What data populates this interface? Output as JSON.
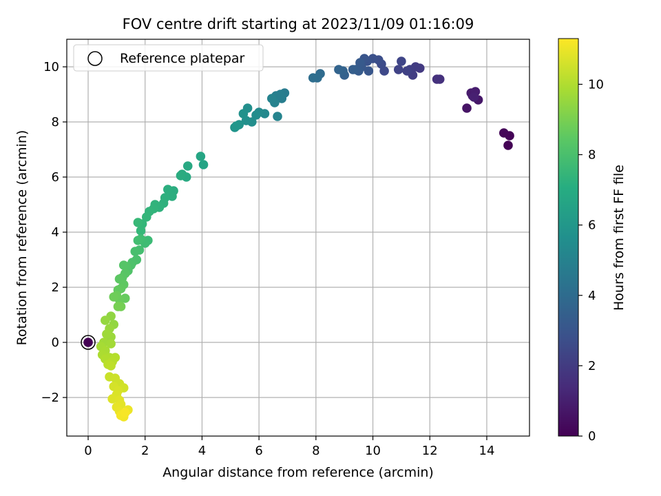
{
  "chart_data": {
    "type": "scatter",
    "title": "FOV centre drift starting at 2023/11/09 01:16:09",
    "xlabel": "Angular distance from reference (arcmin)",
    "ylabel": "Rotation from reference (arcmin)",
    "xlim": [
      -0.75,
      15.5
    ],
    "ylim": [
      -3.4,
      11.0
    ],
    "xticks": [
      0,
      2,
      4,
      6,
      8,
      10,
      12,
      14
    ],
    "yticks": [
      -2,
      0,
      2,
      4,
      6,
      8,
      10
    ],
    "grid": true,
    "legend": {
      "placement": "upper-left",
      "entries": [
        "Reference platepar"
      ]
    },
    "reference_point": {
      "x": 0,
      "y": 0,
      "label": "Reference platepar"
    },
    "colorbar": {
      "label": "Hours from first FF file",
      "range": [
        0,
        11.3
      ],
      "ticks": [
        0,
        2,
        4,
        6,
        8,
        10
      ],
      "colormap": "viridis"
    },
    "points": [
      {
        "x": 14.75,
        "y": 7.15,
        "c": 0.05
      },
      {
        "x": 14.8,
        "y": 7.5,
        "c": 0.1
      },
      {
        "x": 14.6,
        "y": 7.6,
        "c": 0.15
      },
      {
        "x": 13.3,
        "y": 8.5,
        "c": 0.6
      },
      {
        "x": 13.7,
        "y": 8.8,
        "c": 0.7
      },
      {
        "x": 13.5,
        "y": 8.95,
        "c": 0.8
      },
      {
        "x": 13.45,
        "y": 9.05,
        "c": 0.85
      },
      {
        "x": 13.6,
        "y": 9.1,
        "c": 0.9
      },
      {
        "x": 13.55,
        "y": 8.9,
        "c": 1.0
      },
      {
        "x": 12.35,
        "y": 9.55,
        "c": 1.6
      },
      {
        "x": 12.25,
        "y": 9.55,
        "c": 1.65
      },
      {
        "x": 11.65,
        "y": 9.95,
        "c": 1.9
      },
      {
        "x": 11.5,
        "y": 10.0,
        "c": 2.0
      },
      {
        "x": 11.4,
        "y": 9.7,
        "c": 2.05
      },
      {
        "x": 11.3,
        "y": 9.9,
        "c": 2.1
      },
      {
        "x": 11.2,
        "y": 9.85,
        "c": 2.2
      },
      {
        "x": 10.9,
        "y": 9.9,
        "c": 2.3
      },
      {
        "x": 11.0,
        "y": 10.2,
        "c": 2.35
      },
      {
        "x": 10.4,
        "y": 9.85,
        "c": 2.5
      },
      {
        "x": 10.3,
        "y": 10.1,
        "c": 2.6
      },
      {
        "x": 10.2,
        "y": 10.25,
        "c": 2.7
      },
      {
        "x": 10.0,
        "y": 10.3,
        "c": 2.8
      },
      {
        "x": 9.8,
        "y": 10.2,
        "c": 2.9
      },
      {
        "x": 9.7,
        "y": 10.3,
        "c": 3.0
      },
      {
        "x": 9.85,
        "y": 9.85,
        "c": 3.05
      },
      {
        "x": 9.6,
        "y": 10.0,
        "c": 3.1
      },
      {
        "x": 9.55,
        "y": 10.15,
        "c": 3.2
      },
      {
        "x": 9.5,
        "y": 9.85,
        "c": 3.25
      },
      {
        "x": 9.4,
        "y": 9.9,
        "c": 3.3
      },
      {
        "x": 9.3,
        "y": 9.9,
        "c": 3.35
      },
      {
        "x": 9.0,
        "y": 9.7,
        "c": 3.5
      },
      {
        "x": 8.95,
        "y": 9.85,
        "c": 3.55
      },
      {
        "x": 8.8,
        "y": 9.9,
        "c": 3.6
      },
      {
        "x": 8.15,
        "y": 9.75,
        "c": 3.9
      },
      {
        "x": 8.05,
        "y": 9.6,
        "c": 4.0
      },
      {
        "x": 7.9,
        "y": 9.6,
        "c": 4.05
      },
      {
        "x": 6.9,
        "y": 9.05,
        "c": 4.7
      },
      {
        "x": 6.8,
        "y": 8.85,
        "c": 4.8
      },
      {
        "x": 6.75,
        "y": 9.0,
        "c": 4.85
      },
      {
        "x": 6.6,
        "y": 8.95,
        "c": 4.9
      },
      {
        "x": 6.55,
        "y": 8.7,
        "c": 5.0
      },
      {
        "x": 6.45,
        "y": 8.85,
        "c": 5.05
      },
      {
        "x": 6.65,
        "y": 8.2,
        "c": 5.1
      },
      {
        "x": 6.2,
        "y": 8.3,
        "c": 5.3
      },
      {
        "x": 6.0,
        "y": 8.35,
        "c": 5.4
      },
      {
        "x": 5.9,
        "y": 8.25,
        "c": 5.5
      },
      {
        "x": 5.75,
        "y": 8.0,
        "c": 5.55
      },
      {
        "x": 5.6,
        "y": 8.5,
        "c": 5.6
      },
      {
        "x": 5.55,
        "y": 8.05,
        "c": 5.65
      },
      {
        "x": 5.45,
        "y": 8.3,
        "c": 5.7
      },
      {
        "x": 5.3,
        "y": 7.9,
        "c": 5.8
      },
      {
        "x": 5.15,
        "y": 7.8,
        "c": 5.85
      },
      {
        "x": 5.2,
        "y": 7.85,
        "c": 5.9
      },
      {
        "x": 4.05,
        "y": 6.45,
        "c": 6.6
      },
      {
        "x": 3.95,
        "y": 6.75,
        "c": 6.65
      },
      {
        "x": 3.5,
        "y": 6.4,
        "c": 6.8
      },
      {
        "x": 3.45,
        "y": 6.0,
        "c": 6.85
      },
      {
        "x": 3.3,
        "y": 6.1,
        "c": 6.9
      },
      {
        "x": 3.25,
        "y": 6.05,
        "c": 6.95
      },
      {
        "x": 3.0,
        "y": 5.5,
        "c": 7.0
      },
      {
        "x": 2.95,
        "y": 5.3,
        "c": 7.05
      },
      {
        "x": 2.8,
        "y": 5.55,
        "c": 7.1
      },
      {
        "x": 2.7,
        "y": 5.25,
        "c": 7.15
      },
      {
        "x": 2.65,
        "y": 5.05,
        "c": 7.2
      },
      {
        "x": 2.5,
        "y": 4.9,
        "c": 7.25
      },
      {
        "x": 2.35,
        "y": 5.0,
        "c": 7.3
      },
      {
        "x": 2.3,
        "y": 4.85,
        "c": 7.35
      },
      {
        "x": 2.15,
        "y": 4.75,
        "c": 7.4
      },
      {
        "x": 2.05,
        "y": 4.55,
        "c": 7.45
      },
      {
        "x": 1.9,
        "y": 4.3,
        "c": 7.5
      },
      {
        "x": 1.85,
        "y": 4.05,
        "c": 7.55
      },
      {
        "x": 1.75,
        "y": 4.35,
        "c": 7.6
      },
      {
        "x": 2.1,
        "y": 3.7,
        "c": 7.7
      },
      {
        "x": 2.0,
        "y": 3.6,
        "c": 7.75
      },
      {
        "x": 1.85,
        "y": 3.75,
        "c": 7.8
      },
      {
        "x": 1.75,
        "y": 3.7,
        "c": 7.85
      },
      {
        "x": 1.8,
        "y": 3.35,
        "c": 7.9
      },
      {
        "x": 1.65,
        "y": 3.3,
        "c": 7.95
      },
      {
        "x": 1.7,
        "y": 3.0,
        "c": 8.0
      },
      {
        "x": 1.55,
        "y": 2.9,
        "c": 8.05
      },
      {
        "x": 1.5,
        "y": 2.8,
        "c": 8.1
      },
      {
        "x": 1.4,
        "y": 2.6,
        "c": 8.15
      },
      {
        "x": 1.35,
        "y": 2.75,
        "c": 8.2
      },
      {
        "x": 1.25,
        "y": 2.8,
        "c": 8.25
      },
      {
        "x": 1.3,
        "y": 2.5,
        "c": 8.3
      },
      {
        "x": 1.2,
        "y": 2.35,
        "c": 8.35
      },
      {
        "x": 1.1,
        "y": 2.3,
        "c": 8.4
      },
      {
        "x": 1.25,
        "y": 2.1,
        "c": 8.45
      },
      {
        "x": 1.15,
        "y": 1.95,
        "c": 8.5
      },
      {
        "x": 1.05,
        "y": 1.9,
        "c": 8.55
      },
      {
        "x": 1.3,
        "y": 1.6,
        "c": 8.6
      },
      {
        "x": 1.1,
        "y": 1.55,
        "c": 8.7
      },
      {
        "x": 1.0,
        "y": 1.7,
        "c": 8.75
      },
      {
        "x": 0.9,
        "y": 1.65,
        "c": 8.8
      },
      {
        "x": 1.15,
        "y": 1.3,
        "c": 8.9
      },
      {
        "x": 1.05,
        "y": 1.3,
        "c": 8.95
      },
      {
        "x": 0.8,
        "y": 0.95,
        "c": 9.4
      },
      {
        "x": 0.9,
        "y": 0.65,
        "c": 9.45
      },
      {
        "x": 0.6,
        "y": 0.8,
        "c": 9.5
      },
      {
        "x": 0.75,
        "y": 0.5,
        "c": 9.55
      },
      {
        "x": 0.8,
        "y": 0.2,
        "c": 9.6
      },
      {
        "x": 0.65,
        "y": 0.3,
        "c": 9.65
      },
      {
        "x": 0.55,
        "y": 0.0,
        "c": 9.7
      },
      {
        "x": 0.8,
        "y": -0.05,
        "c": 9.75
      },
      {
        "x": 0.45,
        "y": -0.15,
        "c": 9.8
      },
      {
        "x": 0.6,
        "y": -0.3,
        "c": 9.85
      },
      {
        "x": 0.5,
        "y": -0.45,
        "c": 9.9
      },
      {
        "x": 0.75,
        "y": -0.55,
        "c": 9.95
      },
      {
        "x": 0.6,
        "y": -0.6,
        "c": 10.0
      },
      {
        "x": 0.95,
        "y": -0.55,
        "c": 10.05
      },
      {
        "x": 0.85,
        "y": -0.7,
        "c": 10.1
      },
      {
        "x": 0.7,
        "y": -0.8,
        "c": 10.15
      },
      {
        "x": 0.8,
        "y": -0.85,
        "c": 10.2
      },
      {
        "x": 0.75,
        "y": -1.25,
        "c": 10.4
      },
      {
        "x": 0.95,
        "y": -1.3,
        "c": 10.45
      },
      {
        "x": 1.1,
        "y": -1.5,
        "c": 10.5
      },
      {
        "x": 1.25,
        "y": -1.65,
        "c": 10.55
      },
      {
        "x": 0.9,
        "y": -1.6,
        "c": 10.6
      },
      {
        "x": 1.05,
        "y": -1.75,
        "c": 10.65
      },
      {
        "x": 1.0,
        "y": -1.9,
        "c": 10.7
      },
      {
        "x": 0.85,
        "y": -2.05,
        "c": 10.75
      },
      {
        "x": 1.1,
        "y": -2.1,
        "c": 10.8
      },
      {
        "x": 1.15,
        "y": -2.25,
        "c": 10.85
      },
      {
        "x": 1.0,
        "y": -2.35,
        "c": 10.9
      },
      {
        "x": 1.1,
        "y": -2.5,
        "c": 10.95
      },
      {
        "x": 1.4,
        "y": -2.45,
        "c": 11.0
      },
      {
        "x": 1.2,
        "y": -2.6,
        "c": 11.05
      },
      {
        "x": 1.25,
        "y": -2.7,
        "c": 11.1
      },
      {
        "x": 1.15,
        "y": -2.65,
        "c": 11.15
      },
      {
        "x": 1.3,
        "y": -2.55,
        "c": 11.2
      }
    ]
  }
}
